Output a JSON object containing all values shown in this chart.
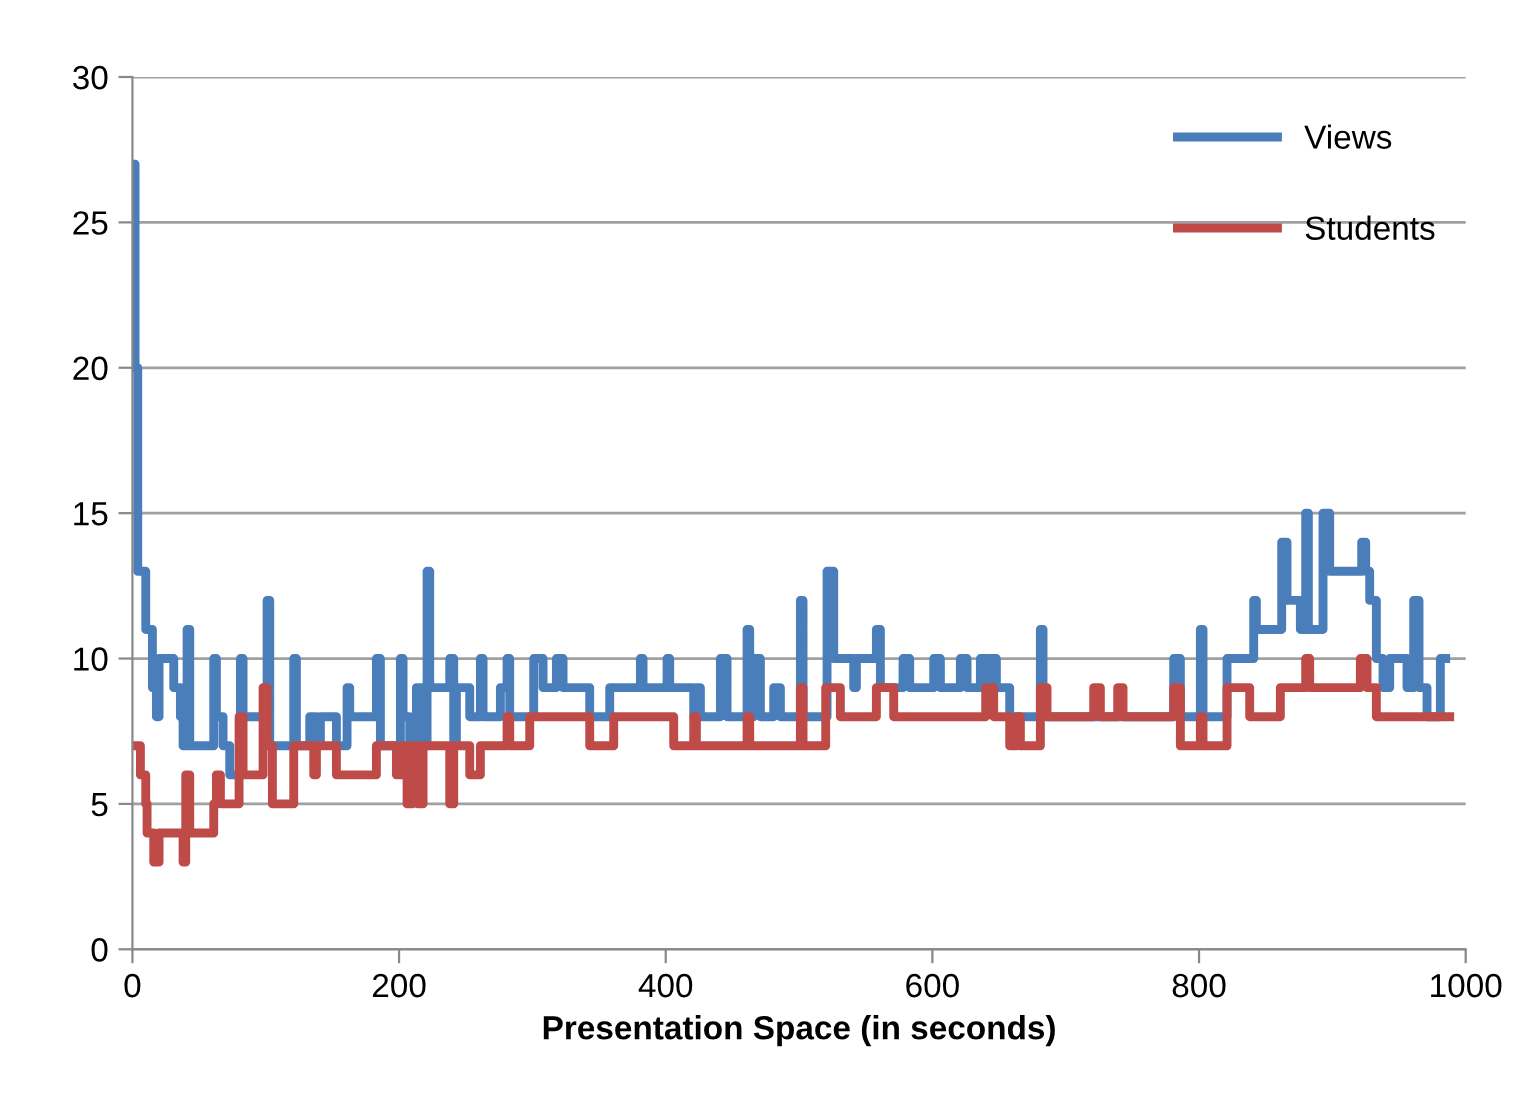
{
  "chart_data": {
    "type": "step",
    "xlabel": "Presentation Space (in seconds)",
    "xlim": [
      0,
      1000
    ],
    "xticks": [
      0,
      200,
      400,
      600,
      800,
      1000
    ],
    "ylim": [
      0,
      30
    ],
    "yticks": [
      0,
      5,
      10,
      15,
      20,
      25,
      30
    ],
    "grid": "y",
    "legend": "top right",
    "line_style": "solid",
    "marker": "none",
    "series": [
      {
        "name": "Views",
        "color": "#4a7ebb",
        "x": [
          1,
          2,
          4,
          10,
          15,
          18,
          20,
          31,
          36,
          38,
          41,
          43,
          61,
          63,
          68,
          73,
          81,
          83,
          101,
          103,
          121,
          123,
          133,
          138,
          141,
          153,
          161,
          163,
          183,
          186,
          201,
          203,
          208,
          213,
          218,
          221,
          223,
          238,
          241,
          243,
          253,
          261,
          263,
          276,
          281,
          283,
          301,
          308,
          318,
          323,
          343,
          358,
          381,
          383,
          401,
          403,
          421,
          423,
          426,
          441,
          446,
          461,
          463,
          466,
          471,
          481,
          486,
          501,
          503,
          521,
          526,
          541,
          543,
          558,
          561,
          578,
          583,
          601,
          606,
          621,
          626,
          636,
          641,
          643,
          648,
          658,
          681,
          683,
          781,
          786,
          801,
          803,
          821,
          841,
          843,
          862,
          866,
          876,
          880,
          882,
          893,
          898,
          901,
          922,
          925,
          928,
          933,
          938,
          943,
          956,
          961,
          965,
          971,
          981,
          985
        ],
        "values": [
          27,
          20,
          13,
          11,
          9,
          8,
          10,
          9,
          8,
          7,
          11,
          7,
          10,
          8,
          7,
          6,
          10,
          8,
          12,
          7,
          10,
          7,
          8,
          7,
          8,
          7,
          9,
          8,
          10,
          7,
          10,
          8,
          7,
          9,
          7,
          13,
          9,
          10,
          7,
          9,
          8,
          10,
          8,
          9,
          10,
          8,
          10,
          9,
          10,
          9,
          8,
          9,
          10,
          9,
          10,
          9,
          8,
          9,
          8,
          10,
          8,
          11,
          8,
          10,
          8,
          9,
          8,
          12,
          8,
          13,
          10,
          9,
          10,
          11,
          9,
          10,
          9,
          10,
          9,
          10,
          9,
          10,
          9,
          10,
          9,
          8,
          11,
          8,
          10,
          8,
          11,
          8,
          10,
          12,
          11,
          14,
          12,
          11,
          15,
          11,
          15,
          13,
          13,
          14,
          13,
          12,
          10,
          9,
          10,
          9,
          12,
          9,
          8,
          10,
          10
        ]
      },
      {
        "name": "Students",
        "color": "#be4b48",
        "x": [
          1,
          6,
          10,
          11,
          16,
          20,
          38,
          40,
          43,
          61,
          63,
          66,
          80,
          83,
          98,
          101,
          105,
          121,
          136,
          138,
          153,
          183,
          198,
          203,
          206,
          210,
          214,
          218,
          238,
          241,
          253,
          261,
          281,
          283,
          298,
          343,
          361,
          406,
          421,
          423,
          461,
          463,
          501,
          503,
          520,
          531,
          558,
          571,
          640,
          646,
          658,
          663,
          666,
          681,
          686,
          721,
          726,
          739,
          743,
          781,
          786,
          801,
          803,
          821,
          838,
          861,
          880,
          883,
          921,
          926,
          933,
          988
        ],
        "values": [
          7,
          6,
          5,
          4,
          3,
          4,
          3,
          6,
          4,
          5,
          6,
          5,
          8,
          6,
          9,
          7,
          5,
          7,
          6,
          7,
          6,
          7,
          6,
          7,
          5,
          7,
          5,
          7,
          5,
          7,
          6,
          7,
          8,
          7,
          8,
          7,
          8,
          7,
          8,
          7,
          8,
          7,
          9,
          7,
          9,
          8,
          9,
          8,
          9,
          8,
          7,
          8,
          7,
          9,
          8,
          9,
          8,
          9,
          8,
          9,
          7,
          8,
          7,
          9,
          8,
          9,
          10,
          9,
          10,
          9,
          8,
          8
        ]
      }
    ]
  }
}
